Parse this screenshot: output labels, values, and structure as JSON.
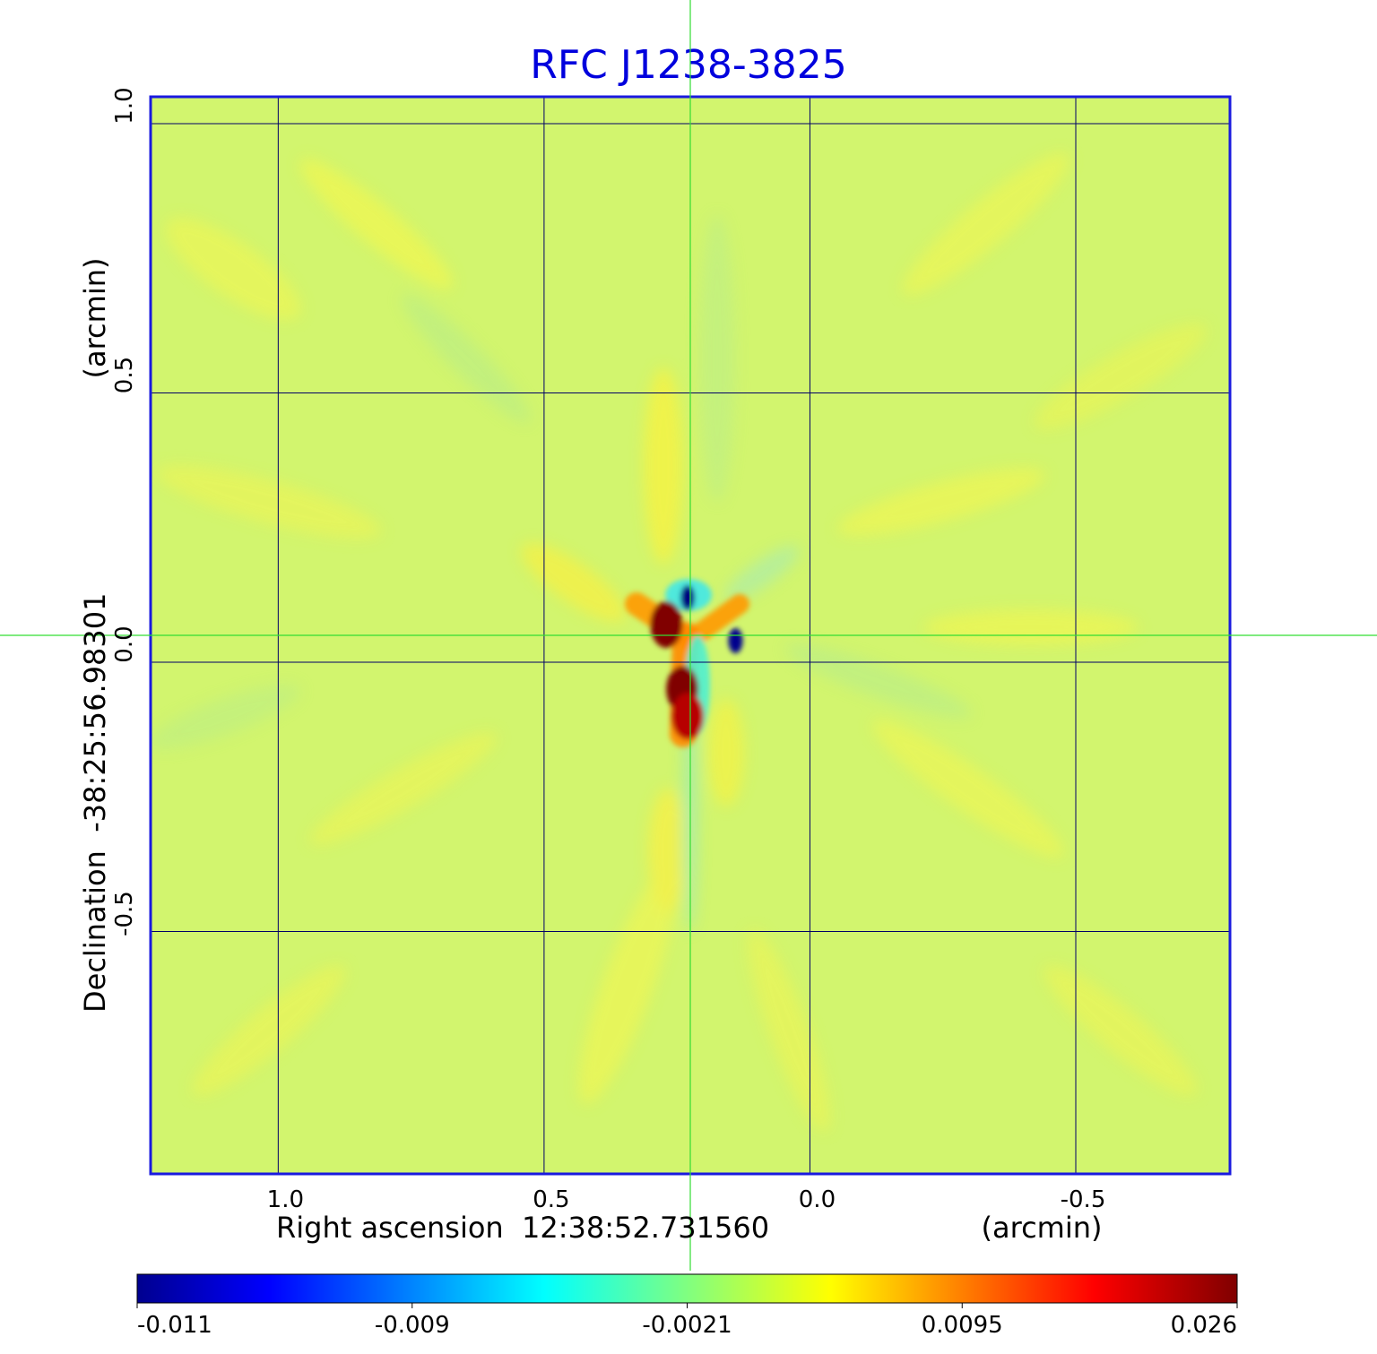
{
  "chart_data": {
    "type": "heatmap",
    "title": "RFC J1238-3825",
    "xlabel": "Right ascension  12:38:52.731560",
    "xunit": "(arcmin)",
    "ylabel": "Declination  -38:25:56.98301",
    "yunit": "(arcmin)",
    "x_ticks": [
      1.0,
      0.5,
      0.0,
      -0.5
    ],
    "x_tick_labels": [
      "1.0",
      "0.5",
      "0.0",
      "-0.5"
    ],
    "y_ticks": [
      1.0,
      0.5,
      0.0,
      -0.5
    ],
    "y_tick_labels": [
      "1.0",
      "0.5",
      "0.0",
      "-0.5"
    ],
    "xlim": [
      1.24,
      -0.79
    ],
    "ylim": [
      -0.95,
      1.05
    ],
    "x_increases_left": true,
    "grid": true,
    "colormap": "jet",
    "colorbar": {
      "tick_values": [
        -0.011,
        -0.009,
        -0.0021,
        0.0095,
        0.026
      ],
      "tick_labels": [
        "-0.011",
        "-0.009",
        "-0.0021",
        "0.0095",
        "0.026"
      ],
      "placement": "bottom"
    },
    "crosshair": {
      "x_arcmin": 0.225,
      "y_arcmin": 0.05
    },
    "peak_features": [
      {
        "x_arcmin": 0.27,
        "y_arcmin": 0.07,
        "value": 0.026,
        "kind": "positive"
      },
      {
        "x_arcmin": 0.24,
        "y_arcmin": -0.05,
        "value": 0.026,
        "kind": "positive"
      },
      {
        "x_arcmin": 0.23,
        "y_arcmin": -0.1,
        "value": 0.024,
        "kind": "positive"
      },
      {
        "x_arcmin": 0.23,
        "y_arcmin": 0.12,
        "value": -0.011,
        "kind": "negative"
      },
      {
        "x_arcmin": 0.14,
        "y_arcmin": 0.04,
        "value": -0.0105,
        "kind": "negative"
      }
    ]
  },
  "colors": {
    "title": "#0000dd",
    "frame": "#1a1adf",
    "grid": "#000066",
    "crosshair": "#33dd33",
    "background": "#d2f56e",
    "text": "#000000"
  }
}
